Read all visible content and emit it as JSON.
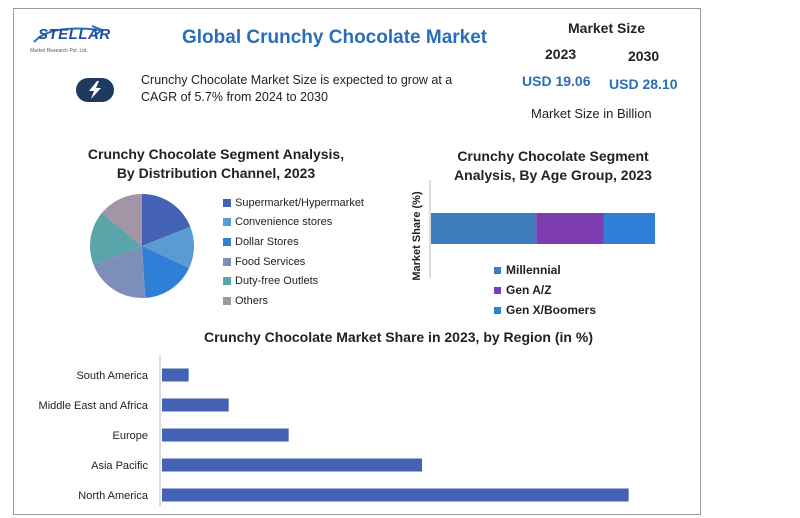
{
  "header": {
    "logo_text": "STELLAR",
    "logo_sub": "Market Research Pvt. Ltd.",
    "title": "Global Crunchy Chocolate Market",
    "description": "Crunchy Chocolate Market Size is expected to grow at a CAGR of 5.7% from 2024 to 2030",
    "badge_icon": "lightning-icon"
  },
  "market_size": {
    "title": "Market Size",
    "year_1": "2023",
    "year_2": "2030",
    "value_1": "USD 19.06",
    "value_2": "USD 28.10",
    "unit": "Market Size in Billion"
  },
  "colors": {
    "title_blue": "#2a6ebb",
    "bar_blue": "#4462b3",
    "badge": "#1e3a5f"
  },
  "chart_data": [
    {
      "type": "pie",
      "title": "Crunchy Chocolate Segment Analysis, By Distribution Channel, 2023",
      "title_lines": [
        "Crunchy Chocolate Segment Analysis,",
        "By Distribution Channel, 2023"
      ],
      "categories": [
        "Supermarket/Hypermarket",
        "Convenience stores",
        "Dollar Stores",
        "Food Services",
        "Duty-free Outlets",
        "Others"
      ],
      "values": [
        19,
        13,
        17,
        20,
        17,
        14
      ],
      "colors": [
        "#4462b3",
        "#5b9bd5",
        "#2f7fd6",
        "#7d8fb8",
        "#5aa5a8",
        "#a394a6"
      ],
      "legend_position": "right"
    },
    {
      "type": "bar",
      "orientation": "horizontal-stacked",
      "title": "Crunchy Chocolate Segment Analysis, By Age Group, 2023",
      "title_lines": [
        "Crunchy Chocolate Segment",
        "Analysis, By Age Group, 2023"
      ],
      "ylabel": "Market Share (%)",
      "series": [
        {
          "name": "Millennial",
          "values": [
            47
          ]
        },
        {
          "name": "Gen A/Z",
          "values": [
            30
          ]
        },
        {
          "name": "Gen X/Boomers",
          "values": [
            23
          ]
        }
      ],
      "colors": [
        "#3d7dbb",
        "#7d3db0",
        "#2f7fd6"
      ],
      "legend_position": "bottom"
    },
    {
      "type": "bar",
      "orientation": "horizontal",
      "title": "Crunchy Chocolate Market Share in 2023, by Region (in %)",
      "categories": [
        "South America",
        "Middle East and Africa",
        "Europe",
        "Asia Pacific",
        "North America"
      ],
      "values": [
        4,
        10,
        19,
        39,
        70
      ],
      "xlim": [
        0,
        75
      ],
      "grid": false
    }
  ]
}
